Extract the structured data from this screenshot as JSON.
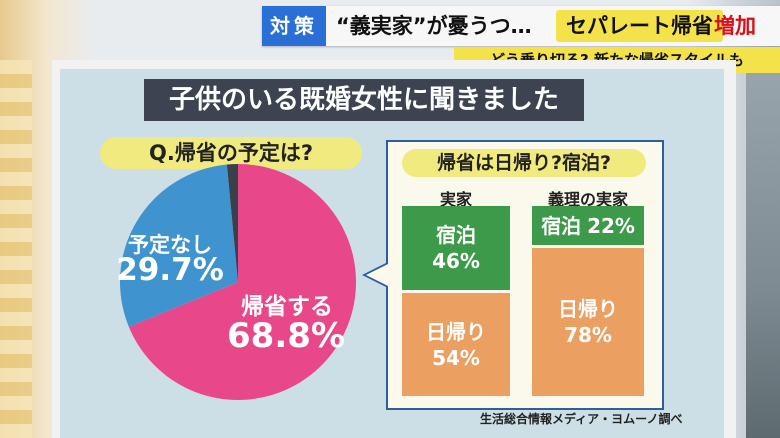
{
  "headline": {
    "tag": "対策",
    "main": "“義実家”が憂うつ…",
    "highlight": "セパレート帰省",
    "emphasis": "増加"
  },
  "subheadline": "どう乗り切る? 新たな帰省スタイルも",
  "panel": {
    "title": "子供のいる既婚女性に聞きました",
    "question": "Q.帰省の予定は?"
  },
  "colors": {
    "homecoming": "#e8488a",
    "no_plan": "#3f93cf",
    "other": "#3a3f4a",
    "overnight": "#3c9a4a",
    "day_trip": "#eba061"
  },
  "chart_data": [
    {
      "type": "pie",
      "title": "Q.帰省の予定は?",
      "slices": [
        {
          "label": "帰省する",
          "value": 68.8,
          "display": "68.8%"
        },
        {
          "label": "予定なし",
          "value": 29.7,
          "display": "29.7%"
        },
        {
          "label": "",
          "value": 1.5
        }
      ]
    },
    {
      "type": "bar",
      "title": "帰省は日帰り?宿泊?",
      "categories": [
        "実家",
        "義理の実家"
      ],
      "series": [
        {
          "name": "宿泊",
          "values": [
            46,
            22
          ],
          "display": [
            "46%",
            "22%"
          ]
        },
        {
          "name": "日帰り",
          "values": [
            54,
            78
          ],
          "display": [
            "54%",
            "78%"
          ]
        }
      ]
    }
  ],
  "source": "生活総合情報メディア・ヨムーノ調べ"
}
